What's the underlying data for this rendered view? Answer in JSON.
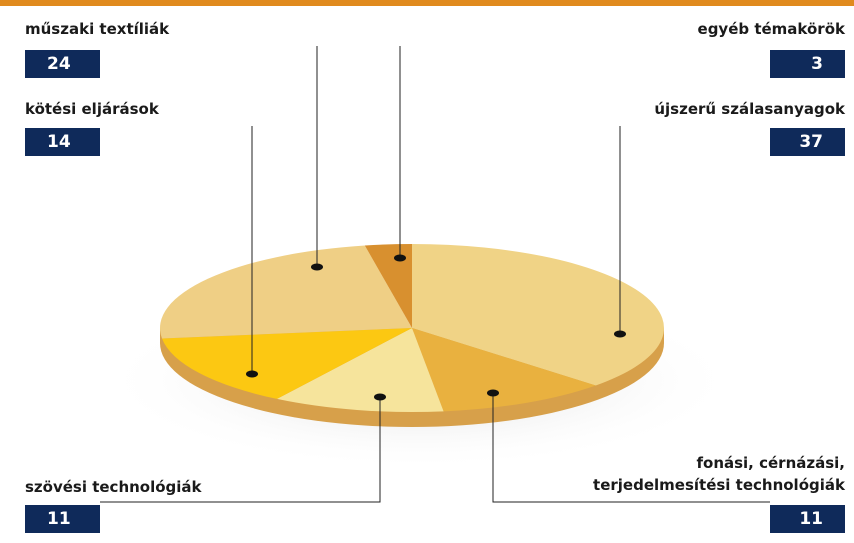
{
  "chart_data": {
    "type": "pie",
    "categories": [
      "újszerű szálasanyagok",
      "fonási, cérnázási, terjedelmesítési technológiák",
      "szövési technológiák",
      "kötési eljárások",
      "műszaki textíliák",
      "egyéb témakörök"
    ],
    "values": [
      37,
      11,
      11,
      14,
      24,
      3
    ],
    "colors": [
      "#f0d386",
      "#e9b13f",
      "#f6e49c",
      "#fcc812",
      "#efcf85",
      "#d8902f"
    ]
  }
}
